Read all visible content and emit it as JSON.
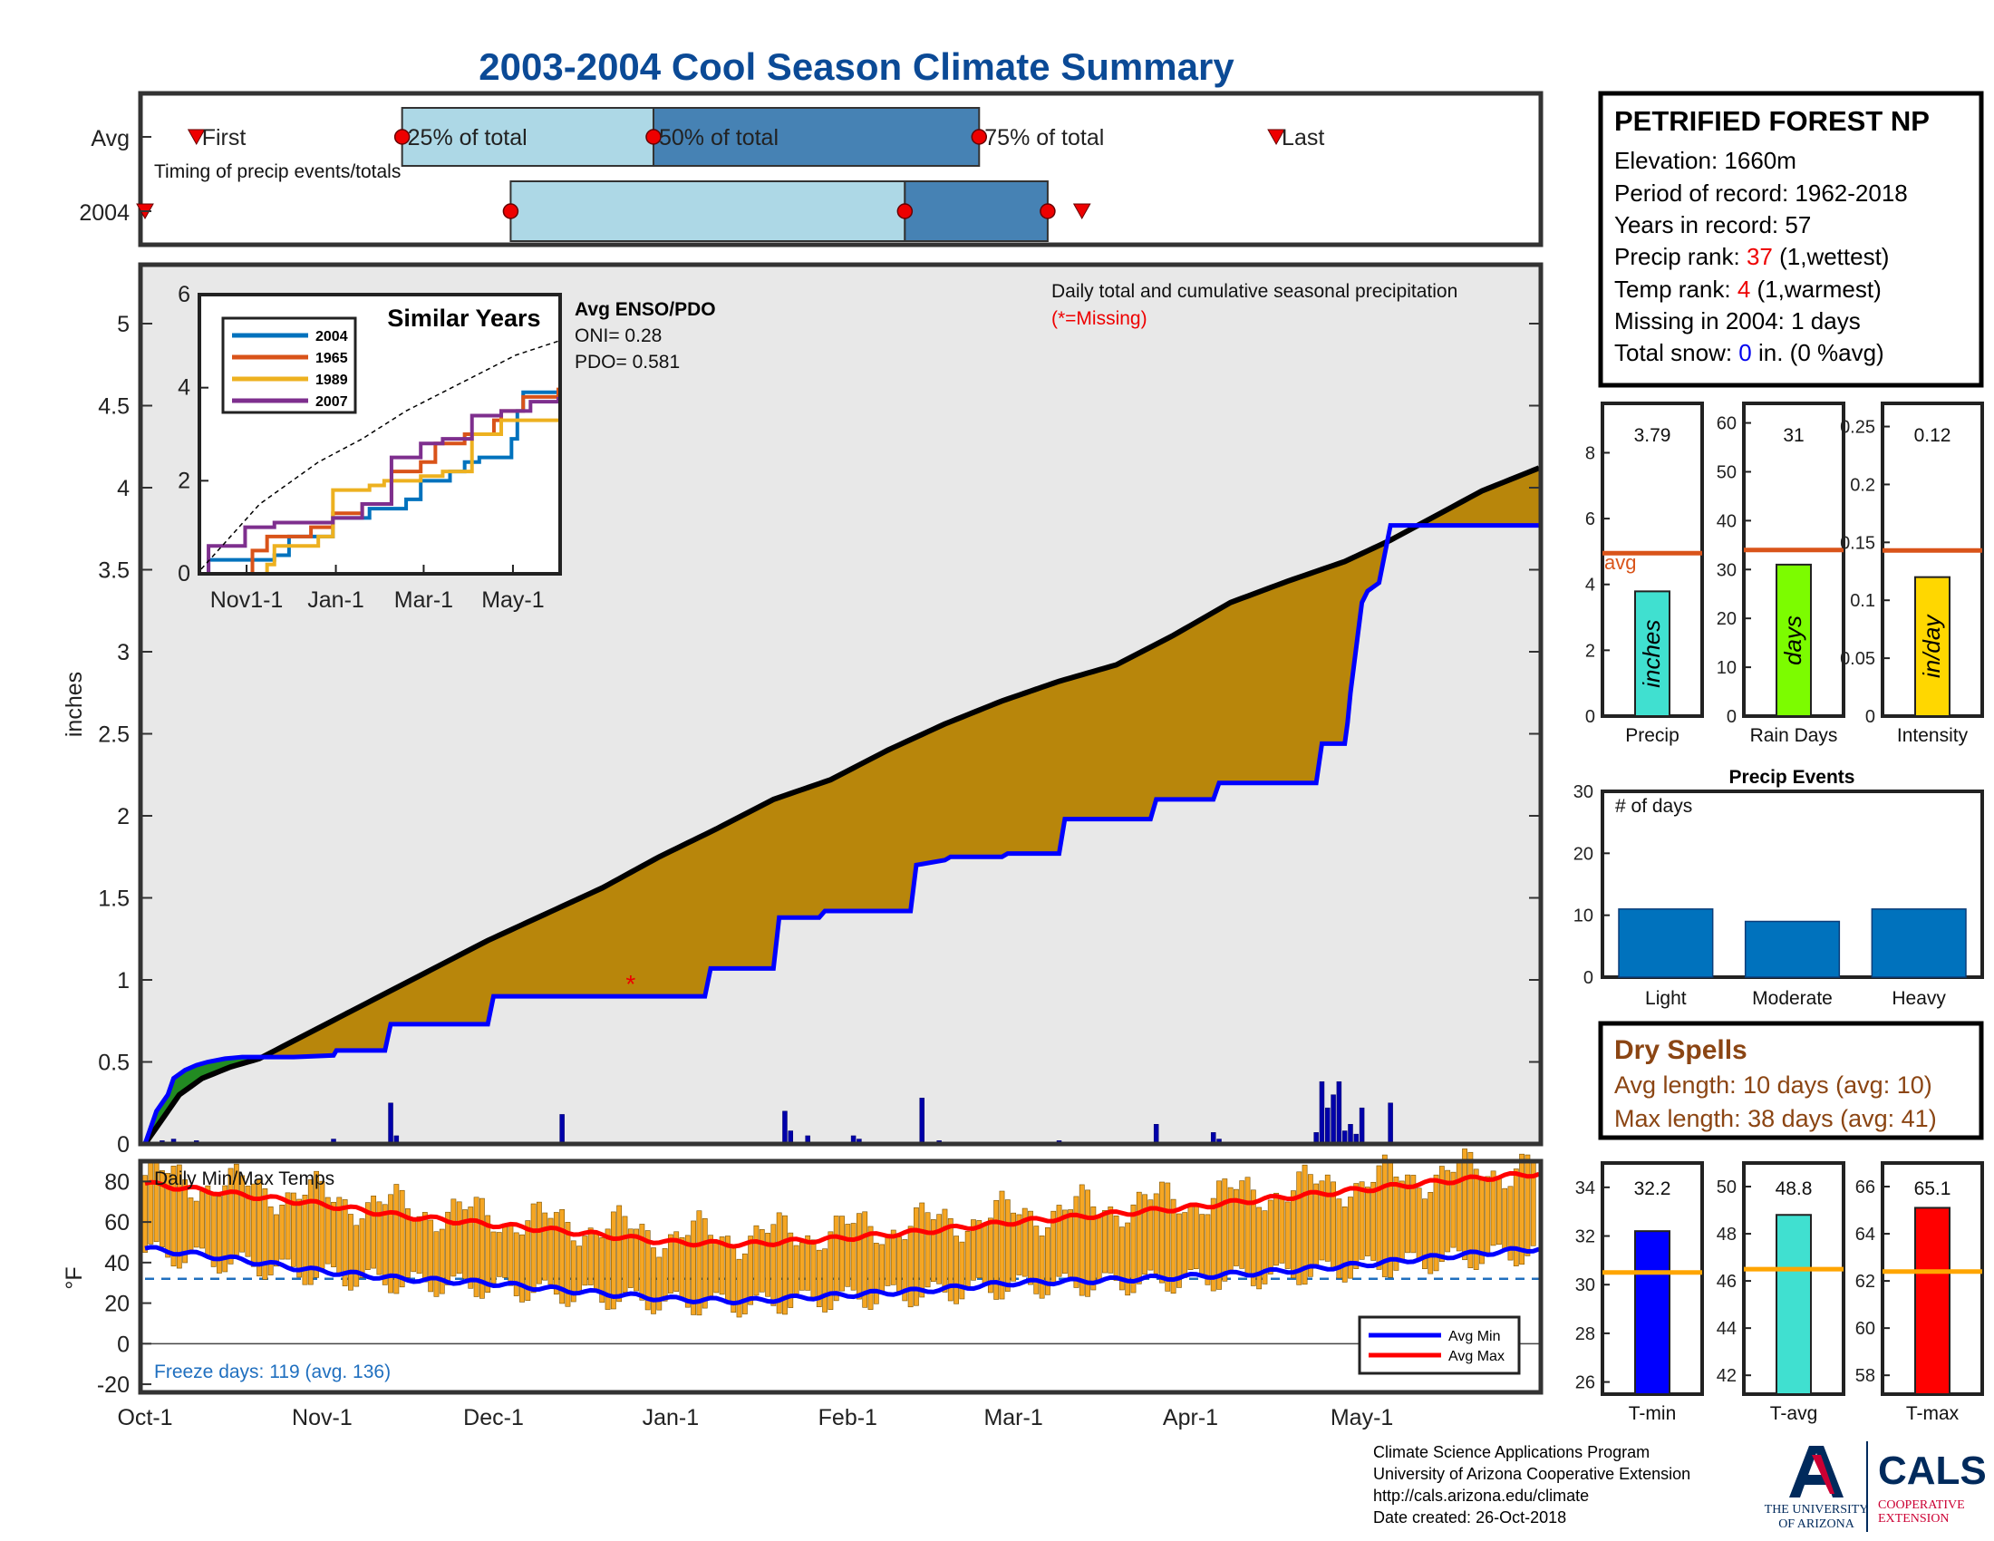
{
  "page": {
    "title": "2003-2004 Cool Season Climate Summary"
  },
  "timing": {
    "row_labels": [
      "Avg",
      "2004"
    ],
    "caption": "Timing of precip events/totals",
    "avg_labels": {
      "first": "First",
      "p25": "25% of total",
      "p50": "50% of total",
      "p75": "75% of total",
      "last": "Last"
    },
    "avg_days": {
      "first": 9,
      "p25": 45,
      "p50": 89,
      "p75": 146,
      "last": 198
    },
    "y2004_days": {
      "first": 0,
      "p25": 64,
      "p50": 133,
      "p75": 158,
      "last": 164
    }
  },
  "station": {
    "name": "PETRIFIED FOREST NP",
    "elevation": "Elevation: 1660m",
    "period": "Period of record: 1962-2018",
    "years": "Years in record: 57",
    "precip_rank_prefix": "Precip rank: ",
    "precip_rank_value": "37",
    "precip_rank_suffix": " (1,wettest)",
    "temp_rank_prefix": "Temp rank: ",
    "temp_rank_value": "4",
    "temp_rank_suffix": " (1,warmest)",
    "missing": "Missing in 2004: 1 days",
    "snow_prefix": "Total snow: ",
    "snow_value": "0",
    "snow_suffix": " in. (0 %avg)"
  },
  "main": {
    "ylabel": "inches",
    "caption": "Daily total and cumulative seasonal precipitation",
    "missing_note": "(*=Missing)",
    "missing_marker": "*",
    "yticks": [
      "0",
      "0.5",
      "1",
      "1.5",
      "2",
      "2.5",
      "3",
      "3.5",
      "4",
      "4.5",
      "5"
    ],
    "xticks": [
      "Oct-1",
      "Nov-1",
      "Dec-1",
      "Jan-1",
      "Feb-1",
      "Mar-1",
      "Apr-1",
      "May-1"
    ]
  },
  "inset": {
    "title": "Similar Years",
    "legend": [
      "2004",
      "1965",
      "1989",
      "2007"
    ],
    "yticks": [
      "0",
      "2",
      "4",
      "6"
    ],
    "xticks": [
      "Nov1-1",
      "Jan-1",
      "Mar-1",
      "May-1"
    ],
    "enso_title": "Avg ENSO/PDO",
    "oni": "ONI= 0.28",
    "pdo": "PDO= 0.581"
  },
  "bars": {
    "precip": {
      "value_label": "3.79",
      "unit": "inches",
      "xlabel": "Precip",
      "yticks": [
        "0",
        "2",
        "4",
        "6",
        "8"
      ],
      "avg_label": "avg"
    },
    "raindays": {
      "value_label": "31",
      "unit": "days",
      "xlabel": "Rain Days",
      "yticks": [
        "0",
        "10",
        "20",
        "30",
        "40",
        "50",
        "60"
      ]
    },
    "intensity": {
      "value_label": "0.12",
      "unit": "in/day",
      "xlabel": "Intensity",
      "yticks": [
        "0",
        "0.05",
        "0.1",
        "0.15",
        "0.2",
        "0.25"
      ]
    }
  },
  "events": {
    "title": "Precip Events",
    "ylabel": "# of days",
    "categories": [
      "Light",
      "Moderate",
      "Heavy"
    ],
    "yticks": [
      "0",
      "10",
      "20",
      "30"
    ]
  },
  "dry": {
    "title": "Dry Spells",
    "avg": "Avg length: 10 days (avg: 10)",
    "max": "Max length: 38 days (avg: 41)"
  },
  "temps": {
    "caption": "Daily Min/Max Temps",
    "ylabel": "°F",
    "yticks": [
      "-20",
      "0",
      "20",
      "40",
      "60",
      "80"
    ],
    "freeze": "Freeze days: 119 (avg. 136)",
    "legend": [
      "Avg Min",
      "Avg Max"
    ]
  },
  "tbars": {
    "tmin": {
      "value_label": "32.2",
      "xlabel": "T-min",
      "yticks": [
        "26",
        "28",
        "30",
        "32",
        "34"
      ]
    },
    "tavg": {
      "value_label": "48.8",
      "xlabel": "T-avg",
      "yticks": [
        "42",
        "44",
        "46",
        "48",
        "50"
      ]
    },
    "tmax": {
      "value_label": "65.1",
      "xlabel": "T-max",
      "yticks": [
        "58",
        "60",
        "62",
        "64",
        "66"
      ]
    }
  },
  "footer": {
    "line1": "Climate Science Applications Program",
    "line2": "University of Arizona Cooperative Extension",
    "line3": "http://cals.arizona.edu/climate",
    "line4": " Date created: 26-Oct-2018",
    "ua_line1": "THE UNIVERSITY",
    "ua_line2": "OF ARIZONA",
    "cals": "CALS",
    "coop1": "COOPERATIVE",
    "coop2": "EXTENSION"
  },
  "colors": {
    "title": "#0b4a96",
    "cum_fill": "#b8860b",
    "early_fill": "#228b22",
    "avg_cum_line": "#0000ff",
    "light_blue": "#add8e6",
    "steel_blue": "#4682b4",
    "red_marker": "#ee0000",
    "avg_line": "#d9541a",
    "temp_bar": "#f5a623",
    "avg_min": "#0000ff",
    "avg_max": "#ff0000",
    "event_bar": "#0072bd",
    "precip_bar": "#40e0d0",
    "raindays_bar": "#7cfc00",
    "intensity_bar": "#ffd700",
    "tmin_bar": "#0000ff",
    "tavg_bar": "#40e0d0",
    "tmax_bar": "#ff0000",
    "temp_avg_line": "#ffa500"
  },
  "chart_data": [
    {
      "type": "area",
      "title": "Daily total and cumulative seasonal precipitation",
      "xlabel": "",
      "ylabel": "inches",
      "ylim": [
        0,
        5.3
      ],
      "x_unit": "day of season (Oct-1 = 0)",
      "series": [
        {
          "name": "cumulative",
          "x": [
            0,
            3,
            6,
            10,
            15,
            20,
            30,
            40,
            45,
            50,
            60,
            70,
            80,
            90,
            100,
            110,
            120,
            130,
            140,
            150,
            160,
            170,
            180,
            190,
            200,
            210,
            218,
            226,
            234,
            244
          ],
          "y": [
            0.0,
            0.15,
            0.3,
            0.4,
            0.47,
            0.52,
            0.7,
            0.88,
            0.97,
            1.06,
            1.24,
            1.4,
            1.56,
            1.75,
            1.92,
            2.1,
            2.22,
            2.4,
            2.56,
            2.7,
            2.82,
            2.92,
            3.1,
            3.3,
            3.43,
            3.55,
            3.68,
            3.83,
            3.98,
            4.12
          ]
        },
        {
          "name": "avg cumulative",
          "x": [
            0,
            1,
            2,
            4,
            5,
            7,
            9,
            11,
            14,
            17,
            22,
            26,
            33,
            33.5,
            42,
            43,
            60,
            61,
            72,
            73,
            98,
            99,
            106,
            107,
            110,
            111,
            118,
            119,
            129,
            130,
            134,
            135,
            140,
            141,
            150,
            151,
            160,
            161,
            176,
            177,
            187,
            188,
            195,
            196,
            205,
            206,
            210,
            210.5,
            211,
            213,
            214,
            216,
            218,
            244
          ],
          "y": [
            0.0,
            0.1,
            0.2,
            0.3,
            0.4,
            0.45,
            0.48,
            0.5,
            0.52,
            0.53,
            0.53,
            0.53,
            0.54,
            0.57,
            0.57,
            0.73,
            0.73,
            0.9,
            0.9,
            0.9,
            0.9,
            1.07,
            1.07,
            1.07,
            1.07,
            1.38,
            1.38,
            1.42,
            1.42,
            1.42,
            1.42,
            1.7,
            1.73,
            1.75,
            1.75,
            1.77,
            1.77,
            1.98,
            1.98,
            2.1,
            2.1,
            2.2,
            2.2,
            2.2,
            2.2,
            2.44,
            2.44,
            2.57,
            2.75,
            3.3,
            3.37,
            3.42,
            3.77,
            3.77
          ]
        },
        {
          "name": "daily",
          "x": [
            3,
            5,
            9,
            33,
            43,
            44,
            73,
            112,
            113,
            116,
            124,
            125,
            136,
            139,
            160,
            177,
            187,
            188,
            205,
            206,
            207,
            208,
            209,
            210,
            211,
            212,
            213,
            218
          ],
          "y": [
            0.02,
            0.03,
            0.02,
            0.03,
            0.25,
            0.05,
            0.18,
            0.2,
            0.08,
            0.05,
            0.05,
            0.03,
            0.28,
            0.02,
            0.02,
            0.12,
            0.07,
            0.03,
            0.07,
            0.38,
            0.22,
            0.3,
            0.38,
            0.08,
            0.12,
            0.06,
            0.22,
            0.25
          ]
        }
      ],
      "missing_day": 85
    },
    {
      "type": "line",
      "title": "Similar Years",
      "ylim": [
        0,
        6
      ],
      "x_unit": "day of season (Oct-1 = 0)",
      "series": [
        {
          "name": "2004",
          "x": [
            0,
            5,
            50,
            60,
            90,
            115,
            140,
            150,
            170,
            180,
            190,
            212,
            216,
            220,
            244
          ],
          "y": [
            0,
            0.3,
            0.4,
            0.8,
            1.2,
            1.4,
            1.6,
            2.0,
            2.2,
            2.4,
            2.5,
            2.9,
            3.5,
            3.9,
            3.9
          ]
        },
        {
          "name": "1965",
          "x": [
            0,
            20,
            35,
            45,
            75,
            90,
            110,
            130,
            150,
            160,
            180,
            200,
            205,
            220,
            244
          ],
          "y": [
            0,
            0,
            0.5,
            0.8,
            1.0,
            1.3,
            1.5,
            2.2,
            2.4,
            2.8,
            3.0,
            3.3,
            3.5,
            3.8,
            4.0
          ]
        },
        {
          "name": "1989",
          "x": [
            0,
            15,
            45,
            50,
            80,
            90,
            115,
            125,
            150,
            165,
            185,
            205,
            222,
            244
          ],
          "y": [
            0,
            0,
            0.2,
            0.6,
            0.8,
            1.8,
            1.9,
            2.0,
            2.1,
            2.2,
            3.0,
            3.3,
            3.3,
            3.3
          ]
        },
        {
          "name": "2007",
          "x": [
            0,
            5,
            30,
            50,
            90,
            110,
            130,
            150,
            165,
            185,
            205,
            225,
            244
          ],
          "y": [
            0,
            0.6,
            1.0,
            1.1,
            1.2,
            1.5,
            2.5,
            2.8,
            2.9,
            3.4,
            3.5,
            3.7,
            3.8
          ]
        },
        {
          "name": "avg",
          "x": [
            0,
            40,
            80,
            110,
            140,
            165,
            190,
            215,
            244
          ],
          "y": [
            0.1,
            1.5,
            2.4,
            2.9,
            3.5,
            3.9,
            4.3,
            4.7,
            5.0
          ]
        }
      ]
    },
    {
      "type": "bar",
      "title": "Precip",
      "categories": [
        "Precip"
      ],
      "values": [
        3.79
      ],
      "avg": 4.95,
      "ylim": [
        0,
        9.5
      ]
    },
    {
      "type": "bar",
      "title": "Rain Days",
      "categories": [
        "Rain Days"
      ],
      "values": [
        31
      ],
      "avg": 34,
      "ylim": [
        0,
        64
      ]
    },
    {
      "type": "bar",
      "title": "Intensity",
      "categories": [
        "Intensity"
      ],
      "values": [
        0.12
      ],
      "avg": 0.143,
      "ylim": [
        0,
        0.27
      ]
    },
    {
      "type": "bar",
      "title": "Precip Events",
      "ylabel": "# of days",
      "categories": [
        "Light",
        "Moderate",
        "Heavy"
      ],
      "values": [
        11,
        9,
        11
      ],
      "ylim": [
        0,
        30
      ]
    },
    {
      "type": "bar",
      "title": "Daily Min/Max Temps",
      "ylabel": "°F",
      "ylim": [
        -24,
        90
      ],
      "x_unit": "day of season (Oct-1 = 0)",
      "freeze_line": 32,
      "series": [
        {
          "name": "Avg Min",
          "x": [
            0,
            15,
            30,
            45,
            60,
            75,
            92,
            105,
            122,
            135,
            152,
            165,
            182,
            195,
            213,
            227,
            244
          ],
          "y": [
            47,
            42,
            36,
            32,
            30,
            26,
            22,
            21,
            24,
            26,
            30,
            31,
            33,
            35,
            39,
            43,
            47
          ]
        },
        {
          "name": "Avg Max",
          "x": [
            0,
            15,
            30,
            45,
            60,
            75,
            92,
            105,
            122,
            135,
            152,
            165,
            182,
            195,
            213,
            227,
            244
          ],
          "y": [
            79,
            74,
            69,
            63,
            59,
            55,
            50,
            49,
            52,
            55,
            60,
            63,
            67,
            71,
            76,
            80,
            84
          ]
        }
      ]
    },
    {
      "type": "bar",
      "title": "T-min",
      "categories": [
        "T-min"
      ],
      "values": [
        32.2
      ],
      "avg": 30.5,
      "ylim": [
        25.5,
        35
      ]
    },
    {
      "type": "bar",
      "title": "T-avg",
      "categories": [
        "T-avg"
      ],
      "values": [
        48.8
      ],
      "avg": 46.5,
      "ylim": [
        41.2,
        51
      ]
    },
    {
      "type": "bar",
      "title": "T-max",
      "categories": [
        "T-max"
      ],
      "values": [
        65.1
      ],
      "avg": 62.4,
      "ylim": [
        57.2,
        67
      ]
    }
  ]
}
